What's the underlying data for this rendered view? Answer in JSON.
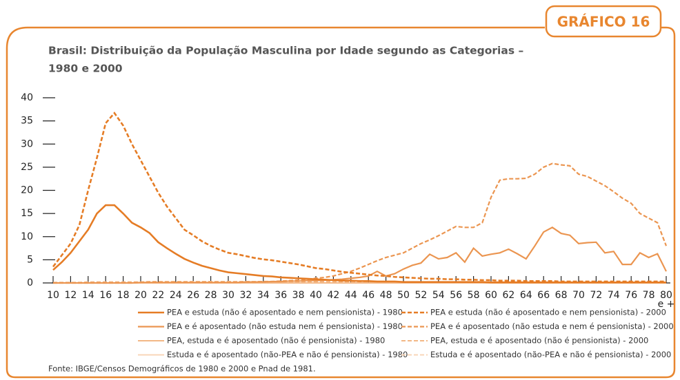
{
  "badge": "GRÁFICO 16",
  "chart_data": {
    "type": "line",
    "title": "Brasil: Distribuição da População Masculina por Idade segundo as Categorias –",
    "title_line2": "1980 e 2000",
    "x": [
      10,
      11,
      12,
      13,
      14,
      15,
      16,
      17,
      18,
      19,
      20,
      21,
      22,
      23,
      24,
      25,
      26,
      27,
      28,
      29,
      30,
      31,
      32,
      33,
      34,
      35,
      36,
      37,
      38,
      39,
      40,
      41,
      42,
      43,
      44,
      45,
      46,
      47,
      48,
      49,
      50,
      51,
      52,
      53,
      54,
      55,
      56,
      57,
      58,
      59,
      60,
      61,
      62,
      63,
      64,
      65,
      66,
      67,
      68,
      69,
      70,
      71,
      72,
      73,
      74,
      75,
      76,
      77,
      78,
      79,
      80
    ],
    "xlim": [
      10,
      80
    ],
    "xticks": [
      10,
      12,
      14,
      16,
      18,
      20,
      22,
      24,
      26,
      28,
      30,
      32,
      34,
      36,
      38,
      40,
      42,
      44,
      46,
      48,
      50,
      52,
      54,
      56,
      58,
      60,
      62,
      64,
      66,
      68,
      70,
      72,
      74,
      76,
      78,
      80
    ],
    "x_last_suffix": "e +",
    "ylim": [
      0,
      40
    ],
    "yticks": [
      0,
      5,
      10,
      15,
      20,
      25,
      30,
      35,
      40
    ],
    "series": [
      {
        "name": "PEA e estuda (não é aposentado e nem pensionista) - 1980",
        "color": "#e57c25",
        "dashed": false,
        "width": 2.6,
        "values": [
          2.8,
          4.5,
          6.5,
          9,
          11.5,
          15,
          16.8,
          16.8,
          15,
          13,
          12,
          10.8,
          8.8,
          7.5,
          6.3,
          5.2,
          4.4,
          3.7,
          3.2,
          2.7,
          2.3,
          2.1,
          1.9,
          1.7,
          1.5,
          1.4,
          1.2,
          1.1,
          1,
          0.9,
          0.8,
          0.7,
          0.6,
          0.5,
          0.5,
          0.4,
          0.4,
          0.3,
          0.3,
          0.3,
          0.2,
          0.2,
          0.2,
          0.2,
          0.2,
          0.2,
          0.2,
          0.2,
          0.2,
          0.2,
          0.1,
          0.1,
          0.1,
          0.1,
          0.1,
          0.1,
          0.1,
          0.1,
          0.1,
          0.1,
          0.1,
          0.1,
          0.1,
          0.1,
          0.1,
          0.1,
          0.1,
          0.1,
          0.1,
          0.1,
          0.1
        ]
      },
      {
        "name": "PEA e estuda (não é aposentado e nem pensionista) - 2000",
        "color": "#e57c25",
        "dashed": true,
        "width": 2.6,
        "values": [
          3.5,
          6,
          8.5,
          12.5,
          20,
          27,
          34.5,
          36.7,
          34,
          30,
          26.5,
          23,
          19.5,
          16.5,
          14,
          11.5,
          10.3,
          9,
          8,
          7.2,
          6.5,
          6.2,
          5.8,
          5.4,
          5.1,
          4.9,
          4.6,
          4.3,
          4,
          3.6,
          3.2,
          3,
          2.7,
          2.4,
          2.2,
          2,
          1.8,
          1.6,
          1.5,
          1.3,
          1.2,
          1.1,
          1,
          0.9,
          0.9,
          0.8,
          0.8,
          0.7,
          0.7,
          0.6,
          0.6,
          0.5,
          0.5,
          0.5,
          0.4,
          0.4,
          0.4,
          0.4,
          0.3,
          0.3,
          0.3,
          0.3,
          0.3,
          0.3,
          0.3,
          0.3,
          0.3,
          0.3,
          0.3,
          0.3,
          0.3
        ]
      },
      {
        "name": "PEA e é aposentado (não estuda nem é pensionista) - 1980",
        "color": "#eb9550",
        "dashed": false,
        "width": 2.2,
        "values": [
          0,
          0,
          0,
          0,
          0,
          0,
          0,
          0,
          0,
          0,
          0.1,
          0.1,
          0.1,
          0.1,
          0.1,
          0.1,
          0.1,
          0.1,
          0.1,
          0.1,
          0.1,
          0.1,
          0.2,
          0.2,
          0.2,
          0.3,
          0.3,
          0.4,
          0.4,
          0.5,
          0.5,
          0.6,
          0.7,
          0.8,
          1,
          1.2,
          1.5,
          2.5,
          1.5,
          2,
          3,
          3.8,
          4.3,
          6.2,
          5.2,
          5.5,
          6.5,
          4.5,
          7.5,
          5.8,
          6.2,
          6.5,
          7.3,
          6.3,
          5.2,
          8,
          11,
          12,
          10.7,
          10.3,
          8.5,
          8.7,
          8.8,
          6.5,
          6.8,
          4,
          4,
          6.5,
          5.5,
          6.3,
          2.5
        ]
      },
      {
        "name": "PEA e é aposentado (não estuda e nem é pensionista) - 2000",
        "color": "#eb9550",
        "dashed": true,
        "width": 2.2,
        "values": [
          0,
          0,
          0,
          0,
          0,
          0,
          0,
          0,
          0,
          0,
          0.1,
          0.1,
          0.1,
          0.1,
          0.1,
          0.1,
          0.1,
          0.1,
          0.1,
          0.1,
          0.1,
          0.1,
          0.2,
          0.2,
          0.3,
          0.3,
          0.4,
          0.5,
          0.6,
          0.8,
          1,
          1.2,
          1.5,
          2,
          2.5,
          3.2,
          4,
          4.8,
          5.5,
          6,
          6.5,
          7.5,
          8.5,
          9.3,
          10.2,
          11.2,
          12.2,
          12,
          12,
          13,
          18.5,
          22.2,
          22.5,
          22.5,
          22.6,
          23.5,
          25,
          25.8,
          25.5,
          25.3,
          23.5,
          23,
          22,
          21,
          19.7,
          18.3,
          17.2,
          15,
          14,
          13,
          8
        ]
      },
      {
        "name": "PEA, estuda e é aposentado (não é pensionista) - 1980",
        "color": "#f3b785",
        "dashed": false,
        "width": 2,
        "values": [
          0,
          0,
          0,
          0,
          0,
          0,
          0,
          0,
          0,
          0,
          0,
          0,
          0,
          0,
          0,
          0,
          0,
          0,
          0,
          0,
          0,
          0,
          0,
          0,
          0,
          0,
          0,
          0,
          0,
          0,
          0,
          0,
          0,
          0,
          0,
          0,
          0,
          0,
          0,
          0,
          0,
          0,
          0,
          0,
          0,
          0,
          0,
          0,
          0,
          0,
          0,
          0,
          0,
          0,
          0,
          0,
          0,
          0,
          0,
          0,
          0,
          0,
          0,
          0,
          0,
          0,
          0,
          0,
          0,
          0,
          0
        ]
      },
      {
        "name": "PEA, estuda e é aposentado (não é pensionista) - 2000",
        "color": "#f3b785",
        "dashed": true,
        "width": 2,
        "values": [
          0.1,
          0.1,
          0.1,
          0.1,
          0.2,
          0.2,
          0.2,
          0.2,
          0.2,
          0.2,
          0.2,
          0.3,
          0.3,
          0.3,
          0.3,
          0.3,
          0.3,
          0.3,
          0.3,
          0.3,
          0.3,
          0.3,
          0.3,
          0.3,
          0.3,
          0.3,
          0.3,
          0.3,
          0.3,
          0.3,
          0.3,
          0.3,
          0.3,
          0.3,
          0.3,
          0.3,
          0.3,
          0.3,
          0.3,
          0.3,
          0.2,
          0.2,
          0.2,
          0.2,
          0.2,
          0.2,
          0.2,
          0.2,
          0.2,
          0.2,
          0.2,
          0.2,
          0.2,
          0.2,
          0.2,
          0.2,
          0.2,
          0.2,
          0.2,
          0.2,
          0.1,
          0.1,
          0.1,
          0.1,
          0.1,
          0.1,
          0.1,
          0.1,
          0.1,
          0.1,
          0.1
        ]
      },
      {
        "name": "Estuda e é aposentado (não-PEA e não é pensionista) - 1980",
        "color": "#f8d6b8",
        "dashed": false,
        "width": 2,
        "values": [
          0,
          0,
          0,
          0,
          0,
          0,
          0,
          0,
          0,
          0,
          0,
          0,
          0,
          0,
          0,
          0,
          0,
          0,
          0,
          0,
          0,
          0,
          0,
          0,
          0,
          0,
          0,
          0,
          0,
          0,
          0,
          0,
          0,
          0,
          0,
          0,
          0,
          0,
          0,
          0,
          0,
          0,
          0,
          0,
          0,
          0,
          0,
          0,
          0,
          0,
          0,
          0,
          0,
          0,
          0,
          0,
          0,
          0,
          0,
          0,
          0,
          0,
          0,
          0,
          0,
          0,
          0,
          0,
          0,
          0,
          0
        ]
      },
      {
        "name": "Estuda e é aposentado (não-PEA e não é pensionista) - 2000",
        "color": "#f8d6b8",
        "dashed": true,
        "width": 2,
        "values": [
          0.1,
          0.1,
          0.1,
          0.1,
          0.1,
          0.1,
          0.1,
          0.1,
          0.1,
          0.1,
          0.1,
          0.1,
          0.1,
          0.1,
          0.1,
          0.1,
          0.1,
          0.1,
          0.1,
          0.1,
          0.1,
          0.1,
          0.1,
          0.1,
          0.1,
          0.1,
          0.1,
          0.1,
          0.1,
          0.1,
          0.1,
          0.1,
          0.1,
          0.1,
          0.1,
          0.1,
          0.1,
          0.1,
          0.1,
          0.1,
          0.1,
          0.1,
          0.1,
          0.1,
          0.1,
          0.1,
          0.1,
          0.1,
          0.1,
          0.1,
          0.1,
          0.1,
          0.1,
          0.1,
          0.1,
          0.1,
          0.1,
          0.1,
          0.1,
          0.1,
          0.1,
          0.1,
          0.1,
          0.1,
          0.1,
          0.1,
          0.1,
          0.1,
          0.1,
          0.1,
          0.1
        ]
      }
    ],
    "source": "Fonte: IBGE/Censos Demográficos de 1980 e 2000 e Pnad de 1981."
  }
}
